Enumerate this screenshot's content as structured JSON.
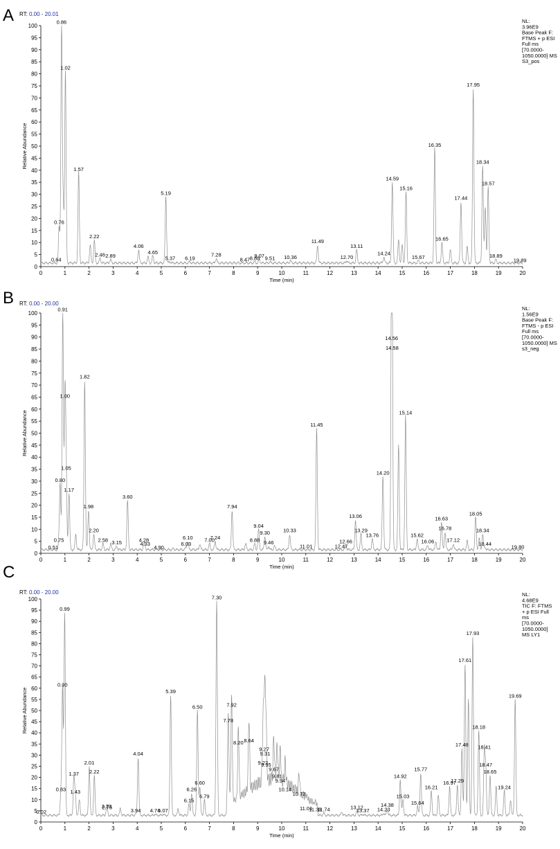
{
  "chart_data": [
    {
      "type": "line",
      "panel": "A",
      "rt_label": "RT:",
      "rt_range": "0.00 - 20.01",
      "ylabel": "Relative Abundance",
      "xlabel": "Time (min)",
      "xlim": [
        0,
        20
      ],
      "ylim": [
        0,
        100
      ],
      "x_ticks": [
        "0",
        "1",
        "2",
        "3",
        "4",
        "5",
        "6",
        "7",
        "8",
        "9",
        "10",
        "11",
        "12",
        "13",
        "14",
        "15",
        "16",
        "17",
        "18",
        "19",
        "20"
      ],
      "y_ticks": [
        "0",
        "5",
        "10",
        "15",
        "20",
        "25",
        "30",
        "35",
        "40",
        "45",
        "50",
        "55",
        "60",
        "65",
        "70",
        "75",
        "80",
        "85",
        "90",
        "95",
        "100"
      ],
      "info": [
        "NL:",
        "3.96E9",
        "Base Peak F:",
        "FTMS + p ESI",
        "Full ms",
        "[70.0000-",
        "1050.0000]  MS",
        "S3_pos"
      ],
      "baseline": 1.5,
      "peaks": [
        {
          "label": "0.64",
          "x": 0.64,
          "y": 1.5
        },
        {
          "label": "0.76",
          "x": 0.76,
          "y": 17
        },
        {
          "label": "0.86",
          "x": 0.86,
          "y": 100
        },
        {
          "label": "1.02",
          "x": 1.02,
          "y": 81
        },
        {
          "label": "1.57",
          "x": 1.57,
          "y": 39
        },
        {
          "label": "2.22",
          "x": 2.22,
          "y": 11
        },
        {
          "label": "2.46",
          "x": 2.46,
          "y": 3.5
        },
        {
          "label": "2.89",
          "x": 2.89,
          "y": 3
        },
        {
          "label": "4.06",
          "x": 4.06,
          "y": 7
        },
        {
          "label": "4.65",
          "x": 4.65,
          "y": 4.5
        },
        {
          "label": "5.19",
          "x": 5.19,
          "y": 29
        },
        {
          "label": "5.37",
          "x": 5.37,
          "y": 2
        },
        {
          "label": "6.19",
          "x": 6.19,
          "y": 2
        },
        {
          "label": "7.28",
          "x": 7.28,
          "y": 3.5
        },
        {
          "label": "8.47",
          "x": 8.47,
          "y": 1.5
        },
        {
          "label": "8.88",
          "x": 8.88,
          "y": 2
        },
        {
          "label": "9.07",
          "x": 9.07,
          "y": 3
        },
        {
          "label": "9.51",
          "x": 9.51,
          "y": 2
        },
        {
          "label": "10.36",
          "x": 10.36,
          "y": 2.5
        },
        {
          "label": "11.49",
          "x": 11.49,
          "y": 9
        },
        {
          "label": "12.70",
          "x": 12.7,
          "y": 2.5
        },
        {
          "label": "13.11",
          "x": 13.11,
          "y": 7
        },
        {
          "label": "14.24",
          "x": 14.24,
          "y": 4
        },
        {
          "label": "14.59",
          "x": 14.59,
          "y": 35
        },
        {
          "label": "15.16",
          "x": 15.16,
          "y": 31
        },
        {
          "label": "15.67",
          "x": 15.67,
          "y": 2.5
        },
        {
          "label": "16.35",
          "x": 16.35,
          "y": 49
        },
        {
          "label": "16.65",
          "x": 16.65,
          "y": 10
        },
        {
          "label": "17.44",
          "x": 17.44,
          "y": 27
        },
        {
          "label": "17.95",
          "x": 17.95,
          "y": 74
        },
        {
          "label": "18.34",
          "x": 18.34,
          "y": 42
        },
        {
          "label": "18.57",
          "x": 18.57,
          "y": 33
        },
        {
          "label": "18.89",
          "x": 18.89,
          "y": 3
        },
        {
          "label": "19.89",
          "x": 19.89,
          "y": 1.2
        }
      ],
      "unlabeled_peaks": [
        {
          "x": 0.93,
          "y": 26
        },
        {
          "x": 2.05,
          "y": 9
        },
        {
          "x": 4.45,
          "y": 4
        },
        {
          "x": 14.85,
          "y": 11
        },
        {
          "x": 15.0,
          "y": 9
        },
        {
          "x": 17.0,
          "y": 7
        },
        {
          "x": 17.7,
          "y": 8
        },
        {
          "x": 18.45,
          "y": 25
        }
      ]
    },
    {
      "type": "line",
      "panel": "B",
      "rt_label": "RT:",
      "rt_range": "0.00 - 20.00",
      "ylabel": "Relative Abundance",
      "xlabel": "Time (min)",
      "xlim": [
        0,
        20
      ],
      "ylim": [
        0,
        100
      ],
      "x_ticks": [
        "0",
        "1",
        "2",
        "3",
        "4",
        "5",
        "6",
        "7",
        "8",
        "9",
        "10",
        "11",
        "12",
        "13",
        "14",
        "15",
        "16",
        "17",
        "18",
        "19",
        "20"
      ],
      "y_ticks": [
        "0",
        "5",
        "10",
        "15",
        "20",
        "25",
        "30",
        "35",
        "40",
        "45",
        "50",
        "55",
        "60",
        "65",
        "70",
        "75",
        "80",
        "85",
        "90",
        "95",
        "100"
      ],
      "info": [
        "NL:",
        "1.56E9",
        "Base Peak F:",
        "FTMS - p ESI",
        "Full ms",
        "[70.0000-",
        "1050.0000]  MS",
        "s3_neg"
      ],
      "baseline": 1.5,
      "peaks": [
        {
          "label": "0.51",
          "x": 0.51,
          "y": 1
        },
        {
          "label": "0.75",
          "x": 0.75,
          "y": 4
        },
        {
          "label": "0.80",
          "x": 0.8,
          "y": 29
        },
        {
          "label": "0.91",
          "x": 0.91,
          "y": 100
        },
        {
          "label": "1.00",
          "x": 1.0,
          "y": 64
        },
        {
          "label": "1.05",
          "x": 1.05,
          "y": 34
        },
        {
          "label": "1.17",
          "x": 1.17,
          "y": 25
        },
        {
          "label": "1.82",
          "x": 1.82,
          "y": 72
        },
        {
          "label": "1.98",
          "x": 1.98,
          "y": 18
        },
        {
          "label": "2.20",
          "x": 2.2,
          "y": 8
        },
        {
          "label": "2.58",
          "x": 2.58,
          "y": 4
        },
        {
          "label": "3.15",
          "x": 3.15,
          "y": 3
        },
        {
          "label": "3.60",
          "x": 3.6,
          "y": 22
        },
        {
          "label": "4.28",
          "x": 4.28,
          "y": 4
        },
        {
          "label": "4.33",
          "x": 4.33,
          "y": 2.5
        },
        {
          "label": "4.90",
          "x": 4.9,
          "y": 1
        },
        {
          "label": "6.03",
          "x": 6.03,
          "y": 2.5
        },
        {
          "label": "6.10",
          "x": 6.1,
          "y": 5
        },
        {
          "label": "7.00",
          "x": 7.0,
          "y": 4
        },
        {
          "label": "7.24",
          "x": 7.24,
          "y": 5
        },
        {
          "label": "7.94",
          "x": 7.94,
          "y": 18
        },
        {
          "label": "8.88",
          "x": 8.88,
          "y": 4
        },
        {
          "label": "9.04",
          "x": 9.04,
          "y": 10
        },
        {
          "label": "9.30",
          "x": 9.3,
          "y": 7
        },
        {
          "label": "9.46",
          "x": 9.46,
          "y": 3
        },
        {
          "label": "10.33",
          "x": 10.33,
          "y": 8
        },
        {
          "label": "11.01",
          "x": 11.01,
          "y": 1.5
        },
        {
          "label": "11.45",
          "x": 11.45,
          "y": 52
        },
        {
          "label": "12.47",
          "x": 12.47,
          "y": 1.5
        },
        {
          "label": "12.66",
          "x": 12.66,
          "y": 3.5
        },
        {
          "label": "13.06",
          "x": 13.06,
          "y": 14
        },
        {
          "label": "13.29",
          "x": 13.29,
          "y": 8
        },
        {
          "label": "13.76",
          "x": 13.76,
          "y": 6
        },
        {
          "label": "14.20",
          "x": 14.2,
          "y": 32
        },
        {
          "label": "14.56",
          "x": 14.56,
          "y": 88
        },
        {
          "label": "14.58",
          "x": 14.58,
          "y": 84
        },
        {
          "label": "15.14",
          "x": 15.14,
          "y": 57
        },
        {
          "label": "15.62",
          "x": 15.62,
          "y": 6
        },
        {
          "label": "16.06",
          "x": 16.06,
          "y": 3.5
        },
        {
          "label": "16.63",
          "x": 16.63,
          "y": 13
        },
        {
          "label": "16.78",
          "x": 16.78,
          "y": 9
        },
        {
          "label": "17.12",
          "x": 17.12,
          "y": 4
        },
        {
          "label": "18.05",
          "x": 18.05,
          "y": 15
        },
        {
          "label": "18.34",
          "x": 18.34,
          "y": 8
        },
        {
          "label": "18.44",
          "x": 18.44,
          "y": 2.5
        },
        {
          "label": "19.80",
          "x": 19.8,
          "y": 1.2
        }
      ],
      "unlabeled_peaks": [
        {
          "x": 1.45,
          "y": 8
        },
        {
          "x": 2.9,
          "y": 4
        },
        {
          "x": 5.5,
          "y": 2
        },
        {
          "x": 6.6,
          "y": 4
        },
        {
          "x": 8.5,
          "y": 4
        },
        {
          "x": 9.7,
          "y": 3
        },
        {
          "x": 14.85,
          "y": 45
        },
        {
          "x": 16.4,
          "y": 5
        },
        {
          "x": 17.7,
          "y": 5
        },
        {
          "x": 18.2,
          "y": 6
        }
      ]
    },
    {
      "type": "line",
      "panel": "C",
      "rt_label": "RT:",
      "rt_range": "0.00 - 20.00",
      "ylabel": "Relative Abundance",
      "xlabel": "Time (min)",
      "xlim": [
        0,
        20
      ],
      "ylim": [
        0,
        100
      ],
      "x_ticks": [
        "0",
        "1",
        "2",
        "3",
        "4",
        "5",
        "6",
        "7",
        "8",
        "9",
        "10",
        "11",
        "12",
        "13",
        "14",
        "15",
        "16",
        "17",
        "18",
        "19",
        "20"
      ],
      "y_ticks": [
        "0",
        "5",
        "10",
        "15",
        "20",
        "25",
        "30",
        "35",
        "40",
        "45",
        "50",
        "55",
        "60",
        "65",
        "70",
        "75",
        "80",
        "85",
        "90",
        "95",
        "100"
      ],
      "info": [
        "NL:",
        "4.68E9",
        "TIC F: FTMS",
        "+ p ESI Full",
        "ms",
        "[70.0000-",
        "1050.0000]",
        "MS LY1"
      ],
      "baseline": 3,
      "peaks": [
        {
          "label": "0.02",
          "x": 0.02,
          "y": 3
        },
        {
          "label": "0.83",
          "x": 0.83,
          "y": 13
        },
        {
          "label": "0.90",
          "x": 0.9,
          "y": 60
        },
        {
          "label": "0.99",
          "x": 0.99,
          "y": 94
        },
        {
          "label": "1.37",
          "x": 1.37,
          "y": 20
        },
        {
          "label": "1.43",
          "x": 1.43,
          "y": 12
        },
        {
          "label": "2.01",
          "x": 2.01,
          "y": 25
        },
        {
          "label": "2.22",
          "x": 2.22,
          "y": 21
        },
        {
          "label": "2.73",
          "x": 2.73,
          "y": 5.5
        },
        {
          "label": "2.75",
          "x": 2.75,
          "y": 5
        },
        {
          "label": "3.94",
          "x": 3.94,
          "y": 3.5
        },
        {
          "label": "4.04",
          "x": 4.04,
          "y": 29
        },
        {
          "label": "4.74",
          "x": 4.74,
          "y": 3.5
        },
        {
          "label": "5.07",
          "x": 5.07,
          "y": 3.5
        },
        {
          "label": "5.39",
          "x": 5.39,
          "y": 57
        },
        {
          "label": "6.15",
          "x": 6.15,
          "y": 8
        },
        {
          "label": "6.26",
          "x": 6.26,
          "y": 13
        },
        {
          "label": "6.50",
          "x": 6.5,
          "y": 50
        },
        {
          "label": "6.60",
          "x": 6.6,
          "y": 16
        },
        {
          "label": "6.79",
          "x": 6.79,
          "y": 10
        },
        {
          "label": "7.30",
          "x": 7.3,
          "y": 99
        },
        {
          "label": "7.78",
          "x": 7.78,
          "y": 44
        },
        {
          "label": "7.92",
          "x": 7.92,
          "y": 51
        },
        {
          "label": "8.20",
          "x": 8.2,
          "y": 34
        },
        {
          "label": "8.64",
          "x": 8.64,
          "y": 35
        },
        {
          "label": "9.22",
          "x": 9.22,
          "y": 25
        },
        {
          "label": "9.27",
          "x": 9.27,
          "y": 31
        },
        {
          "label": "9.31",
          "x": 9.31,
          "y": 29
        },
        {
          "label": "9.35",
          "x": 9.35,
          "y": 24
        },
        {
          "label": "9.67",
          "x": 9.67,
          "y": 22
        },
        {
          "label": "9.81",
          "x": 9.81,
          "y": 19
        },
        {
          "label": "9.94",
          "x": 9.94,
          "y": 17
        },
        {
          "label": "10.14",
          "x": 10.14,
          "y": 13
        },
        {
          "label": "10.72",
          "x": 10.72,
          "y": 11
        },
        {
          "label": "11.01",
          "x": 11.01,
          "y": 4.5
        },
        {
          "label": "11.39",
          "x": 11.39,
          "y": 4
        },
        {
          "label": "11.74",
          "x": 11.74,
          "y": 4
        },
        {
          "label": "13.12",
          "x": 13.12,
          "y": 5
        },
        {
          "label": "13.37",
          "x": 13.37,
          "y": 3.5
        },
        {
          "label": "14.23",
          "x": 14.23,
          "y": 4
        },
        {
          "label": "14.38",
          "x": 14.38,
          "y": 6
        },
        {
          "label": "14.92",
          "x": 14.92,
          "y": 19
        },
        {
          "label": "15.03",
          "x": 15.03,
          "y": 10
        },
        {
          "label": "15.64",
          "x": 15.64,
          "y": 7
        },
        {
          "label": "15.77",
          "x": 15.77,
          "y": 22
        },
        {
          "label": "16.21",
          "x": 16.21,
          "y": 14
        },
        {
          "label": "16.97",
          "x": 16.97,
          "y": 16
        },
        {
          "label": "17.29",
          "x": 17.29,
          "y": 17
        },
        {
          "label": "17.48",
          "x": 17.48,
          "y": 33
        },
        {
          "label": "17.61",
          "x": 17.61,
          "y": 71
        },
        {
          "label": "17.93",
          "x": 17.93,
          "y": 83
        },
        {
          "label": "18.18",
          "x": 18.18,
          "y": 41
        },
        {
          "label": "18.41",
          "x": 18.41,
          "y": 32
        },
        {
          "label": "18.47",
          "x": 18.47,
          "y": 24
        },
        {
          "label": "18.65",
          "x": 18.65,
          "y": 21
        },
        {
          "label": "19.24",
          "x": 19.24,
          "y": 14
        },
        {
          "label": "19.69",
          "x": 19.69,
          "y": 55
        }
      ],
      "hump": {
        "from": 8.3,
        "to": 10.9,
        "level": 22
      },
      "unlabeled_peaks": [
        {
          "x": 1.6,
          "y": 10
        },
        {
          "x": 3.3,
          "y": 6
        },
        {
          "x": 5.7,
          "y": 6
        },
        {
          "x": 12.5,
          "y": 4.5
        },
        {
          "x": 16.5,
          "y": 12
        },
        {
          "x": 17.75,
          "y": 55
        },
        {
          "x": 18.9,
          "y": 16
        },
        {
          "x": 19.5,
          "y": 10
        }
      ]
    }
  ]
}
